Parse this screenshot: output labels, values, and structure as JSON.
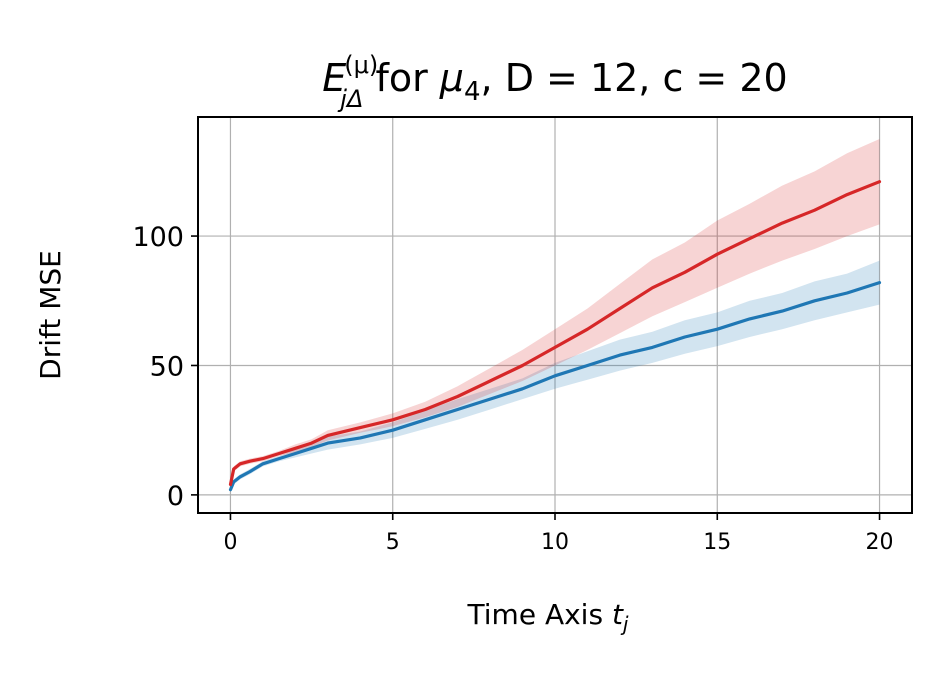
{
  "chart_data": {
    "type": "line",
    "title": "E_{jΔ}^{(μ)} for μ_4, D = 12, c = 20",
    "title_parts": {
      "symbol": "E",
      "subscript": "jΔ",
      "superscript": "(μ)",
      "middle": " for ",
      "mu": "μ",
      "mu_sub": "4",
      "rest": ", D = 12, c = 20"
    },
    "xlabel": "Time Axis t_j",
    "xlabel_parts": {
      "text": "Time Axis ",
      "var": "t",
      "sub": "j"
    },
    "ylabel": "Drift MSE",
    "xlim": [
      -1,
      21
    ],
    "ylim": [
      -7,
      146
    ],
    "xticks": [
      0,
      5,
      10,
      15,
      20
    ],
    "xtick_labels": [
      "0",
      "5",
      "10",
      "15",
      "20"
    ],
    "yticks": [
      0,
      50,
      100
    ],
    "ytick_labels": [
      "0",
      "50",
      "100"
    ],
    "grid": true,
    "series": [
      {
        "color": "#1f77b4",
        "band_color": "#1f77b4",
        "x": [
          0,
          0.1,
          0.3,
          0.6,
          1,
          1.5,
          2,
          2.5,
          3,
          4,
          5,
          6,
          7,
          8,
          9,
          10,
          11,
          12,
          13,
          14,
          15,
          16,
          17,
          18,
          19,
          20
        ],
        "y": [
          2,
          5,
          7,
          9,
          12,
          14,
          16,
          18,
          20,
          22,
          25,
          29,
          33,
          37,
          41,
          46,
          50,
          54,
          57,
          61,
          64,
          68,
          71,
          75,
          78,
          82
        ],
        "lower": [
          1,
          4,
          6,
          8,
          11,
          13,
          14.5,
          16,
          17.5,
          19.5,
          22,
          25.5,
          29,
          33,
          37,
          41,
          44.5,
          48,
          51,
          54.5,
          57.5,
          61,
          64,
          67.5,
          70.5,
          73.5
        ],
        "upper": [
          3,
          6,
          8,
          10,
          13,
          15,
          17.5,
          20,
          22.5,
          24.5,
          28,
          32.5,
          37,
          41,
          45,
          51,
          55.5,
          60,
          63,
          67.5,
          70.5,
          75,
          78,
          82.5,
          85.5,
          90.5
        ]
      },
      {
        "color": "#d62728",
        "band_color": "#d62728",
        "x": [
          0,
          0.1,
          0.3,
          0.6,
          1,
          1.5,
          2,
          2.5,
          3,
          4,
          5,
          6,
          7,
          8,
          9,
          10,
          11,
          12,
          13,
          14,
          15,
          16,
          17,
          18,
          19,
          20
        ],
        "y": [
          4,
          10,
          12,
          13,
          14,
          16,
          18,
          20,
          23,
          26,
          29,
          33,
          38,
          44,
          50,
          57,
          64,
          72,
          80,
          86,
          93,
          99,
          105,
          110,
          116,
          121
        ],
        "lower": [
          3,
          9,
          11,
          12,
          13,
          15,
          16.5,
          18.5,
          21,
          24,
          26.5,
          30,
          34,
          39,
          44,
          50,
          56,
          62.5,
          69,
          74.5,
          80,
          85.5,
          90.5,
          95,
          100,
          104.5
        ],
        "upper": [
          5,
          11,
          13,
          14,
          15,
          17,
          19.5,
          21.5,
          25,
          28,
          31.5,
          36,
          42,
          49,
          56,
          64,
          72,
          81.5,
          91,
          97.5,
          106,
          112.5,
          119.5,
          125,
          132,
          137.5
        ]
      }
    ]
  }
}
